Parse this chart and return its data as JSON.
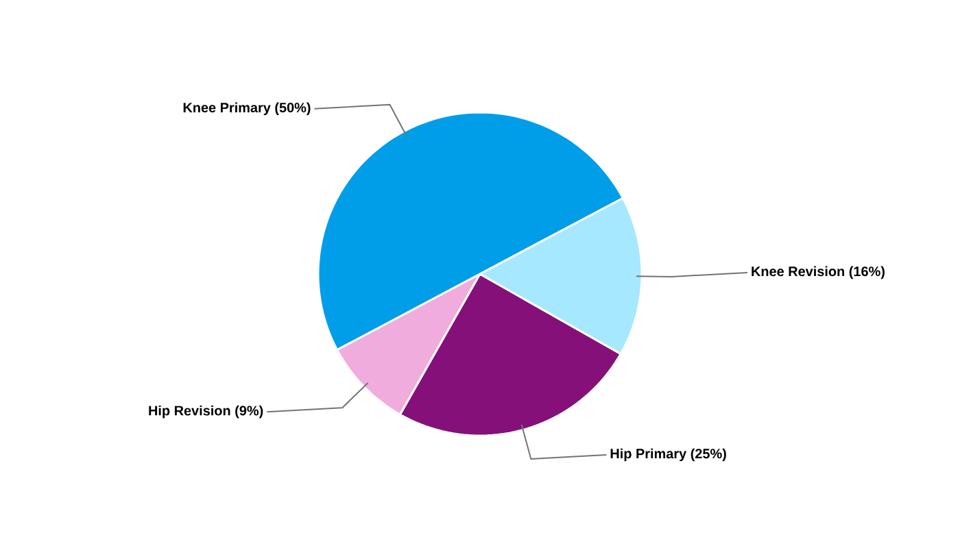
{
  "chart_data": {
    "type": "pie",
    "categories": [
      "Knee Primary (50%)",
      "Hip Revision (9%)",
      "Hip Primary (25%)",
      "Knee Revision (16%)"
    ],
    "values": [
      50,
      9,
      25,
      16
    ],
    "colors": [
      "#009de9",
      "#f0acdc",
      "#85107a",
      "#a6e8ff"
    ]
  }
}
